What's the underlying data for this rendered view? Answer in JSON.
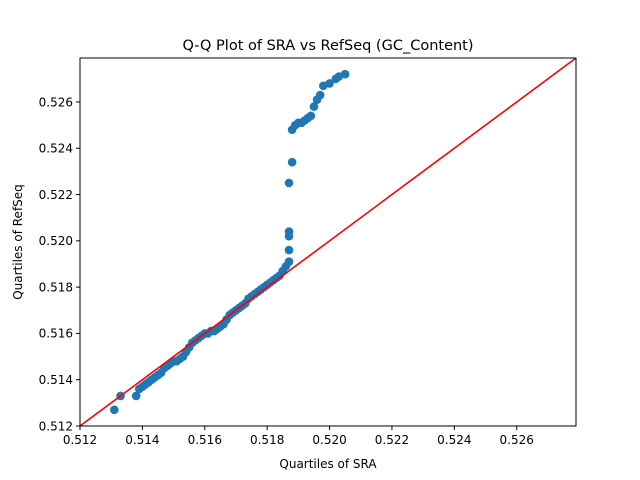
{
  "chart_data": {
    "type": "scatter",
    "title": "Q-Q Plot of SRA vs RefSeq (GC_Content)",
    "xlabel": "Quartiles of SRA",
    "ylabel": "Quartiles of RefSeq",
    "xlim": [
      0.512,
      0.5279
    ],
    "ylim": [
      0.512,
      0.5279
    ],
    "xticks": [
      "0.512",
      "0.514",
      "0.516",
      "0.518",
      "0.520",
      "0.522",
      "0.524",
      "0.526"
    ],
    "yticks": [
      "0.512",
      "0.514",
      "0.516",
      "0.518",
      "0.520",
      "0.522",
      "0.524",
      "0.526"
    ],
    "xtick_values": [
      0.512,
      0.514,
      0.516,
      0.518,
      0.52,
      0.522,
      0.524,
      0.526
    ],
    "ytick_values": [
      0.512,
      0.514,
      0.516,
      0.518,
      0.52,
      0.522,
      0.524,
      0.526
    ],
    "grid": false,
    "reference_line": {
      "from": [
        0.512,
        0.512
      ],
      "to": [
        0.5279,
        0.5279
      ],
      "color": "#ff0000"
    },
    "marker_color": "#1f77b4",
    "points": [
      [
        0.5131,
        0.5127
      ],
      [
        0.5133,
        0.5133
      ],
      [
        0.5138,
        0.5133
      ],
      [
        0.5139,
        0.5136
      ],
      [
        0.514,
        0.5137
      ],
      [
        0.5141,
        0.5138
      ],
      [
        0.5142,
        0.5139
      ],
      [
        0.5143,
        0.514
      ],
      [
        0.5144,
        0.5141
      ],
      [
        0.5145,
        0.5142
      ],
      [
        0.5146,
        0.5143
      ],
      [
        0.5147,
        0.5145
      ],
      [
        0.5148,
        0.5146
      ],
      [
        0.5149,
        0.5147
      ],
      [
        0.515,
        0.5148
      ],
      [
        0.5151,
        0.5148
      ],
      [
        0.5152,
        0.5149
      ],
      [
        0.5153,
        0.515
      ],
      [
        0.5154,
        0.5152
      ],
      [
        0.5155,
        0.5154
      ],
      [
        0.5156,
        0.5156
      ],
      [
        0.5157,
        0.5157
      ],
      [
        0.5158,
        0.5158
      ],
      [
        0.5159,
        0.5159
      ],
      [
        0.516,
        0.516
      ],
      [
        0.5161,
        0.516
      ],
      [
        0.5162,
        0.5161
      ],
      [
        0.5163,
        0.5161
      ],
      [
        0.5164,
        0.5162
      ],
      [
        0.5165,
        0.5163
      ],
      [
        0.5166,
        0.5164
      ],
      [
        0.5167,
        0.5166
      ],
      [
        0.5168,
        0.5168
      ],
      [
        0.5169,
        0.5169
      ],
      [
        0.517,
        0.517
      ],
      [
        0.5171,
        0.5171
      ],
      [
        0.5172,
        0.5172
      ],
      [
        0.5173,
        0.5173
      ],
      [
        0.5174,
        0.5175
      ],
      [
        0.5175,
        0.5176
      ],
      [
        0.5176,
        0.5177
      ],
      [
        0.5177,
        0.5178
      ],
      [
        0.5178,
        0.5179
      ],
      [
        0.5179,
        0.518
      ],
      [
        0.518,
        0.5181
      ],
      [
        0.5181,
        0.5182
      ],
      [
        0.5182,
        0.5183
      ],
      [
        0.5183,
        0.5184
      ],
      [
        0.5184,
        0.5185
      ],
      [
        0.5185,
        0.5187
      ],
      [
        0.5186,
        0.5189
      ],
      [
        0.5187,
        0.5191
      ],
      [
        0.5187,
        0.5196
      ],
      [
        0.5187,
        0.5202
      ],
      [
        0.5187,
        0.5204
      ],
      [
        0.5187,
        0.5225
      ],
      [
        0.5188,
        0.5234
      ],
      [
        0.5188,
        0.5248
      ],
      [
        0.5189,
        0.525
      ],
      [
        0.519,
        0.5251
      ],
      [
        0.5191,
        0.5251
      ],
      [
        0.5192,
        0.5252
      ],
      [
        0.5193,
        0.5253
      ],
      [
        0.5194,
        0.5254
      ],
      [
        0.5195,
        0.5258
      ],
      [
        0.5196,
        0.5261
      ],
      [
        0.5197,
        0.5263
      ],
      [
        0.5198,
        0.5267
      ],
      [
        0.52,
        0.5268
      ],
      [
        0.5202,
        0.527
      ],
      [
        0.5203,
        0.5271
      ],
      [
        0.5205,
        0.5272
      ]
    ]
  }
}
